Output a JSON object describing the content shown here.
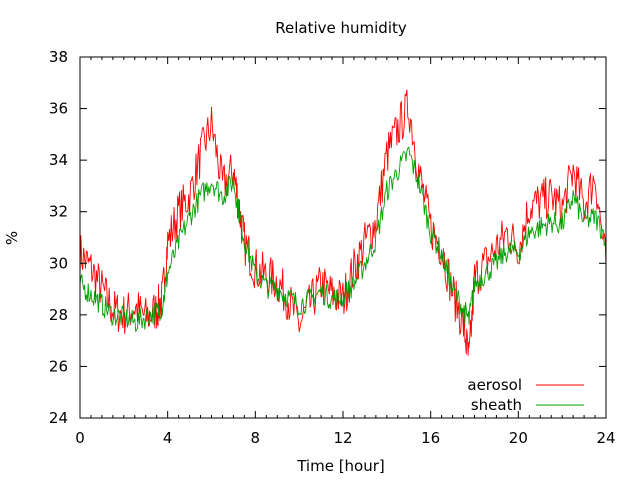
{
  "chart_data": {
    "type": "line",
    "title": "Relative humidity",
    "xlabel": "Time [hour]",
    "ylabel": "%",
    "xlim": [
      0,
      24
    ],
    "ylim": [
      24,
      38
    ],
    "xticks": [
      0,
      4,
      8,
      12,
      16,
      20,
      24
    ],
    "yticks": [
      24,
      26,
      28,
      30,
      32,
      34,
      36,
      38
    ],
    "grid": false,
    "legend_position": "bottom-right",
    "series": [
      {
        "name": "aerosol",
        "color": "#ff0000",
        "x": [
          0,
          0.5,
          1,
          1.5,
          2,
          2.5,
          3,
          3.5,
          3.75,
          4,
          4.5,
          5,
          5.5,
          6,
          6.5,
          7,
          7.25,
          7.5,
          8,
          8.5,
          9,
          9.5,
          10,
          10.5,
          11,
          11.5,
          12,
          12.5,
          13,
          13.5,
          14,
          14.5,
          15,
          15.5,
          16,
          16.5,
          17,
          17.5,
          17.75,
          18,
          18.5,
          19,
          19.5,
          20,
          20.5,
          21,
          21.5,
          22,
          22.5,
          23,
          23.5,
          24
        ],
        "y": [
          30.4,
          29.8,
          29.0,
          28.2,
          28.0,
          28.3,
          27.9,
          28.2,
          28.6,
          30.8,
          32.0,
          32.6,
          34.2,
          35.4,
          33.0,
          33.6,
          32.2,
          30.8,
          29.8,
          29.5,
          29.3,
          28.6,
          27.6,
          28.4,
          29.2,
          28.8,
          28.6,
          29.8,
          30.8,
          31.6,
          34.2,
          35.2,
          36.1,
          33.4,
          31.4,
          30.6,
          28.9,
          27.6,
          26.2,
          29.4,
          30.0,
          30.6,
          31.2,
          30.6,
          32.2,
          32.4,
          32.6,
          32.1,
          33.6,
          32.2,
          33.4,
          29.9
        ]
      },
      {
        "name": "sheath",
        "color": "#00a000",
        "x": [
          0,
          0.5,
          1,
          1.5,
          2,
          2.5,
          3,
          3.5,
          3.75,
          4,
          4.5,
          5,
          5.5,
          6,
          6.5,
          7,
          7.25,
          7.5,
          8,
          8.5,
          9,
          9.5,
          10,
          10.5,
          11,
          11.5,
          12,
          12.5,
          13,
          13.5,
          14,
          14.5,
          15,
          15.5,
          16,
          16.5,
          17,
          17.5,
          17.75,
          18,
          18.5,
          19,
          19.5,
          20,
          20.5,
          21,
          21.5,
          22,
          22.5,
          23,
          23.5,
          24
        ],
        "y": [
          29.2,
          28.8,
          28.4,
          28.0,
          27.9,
          27.7,
          27.9,
          28.1,
          28.3,
          29.6,
          30.8,
          31.8,
          32.6,
          33.2,
          32.6,
          33.2,
          32.0,
          30.9,
          29.6,
          29.1,
          29.0,
          28.7,
          28.4,
          28.6,
          28.9,
          28.6,
          28.7,
          29.2,
          30.0,
          30.9,
          32.8,
          33.6,
          34.3,
          33.0,
          31.2,
          30.4,
          29.0,
          28.2,
          27.8,
          29.2,
          29.6,
          30.0,
          30.5,
          30.4,
          31.2,
          31.4,
          31.6,
          31.5,
          32.6,
          31.6,
          31.8,
          31.0
        ]
      }
    ]
  }
}
